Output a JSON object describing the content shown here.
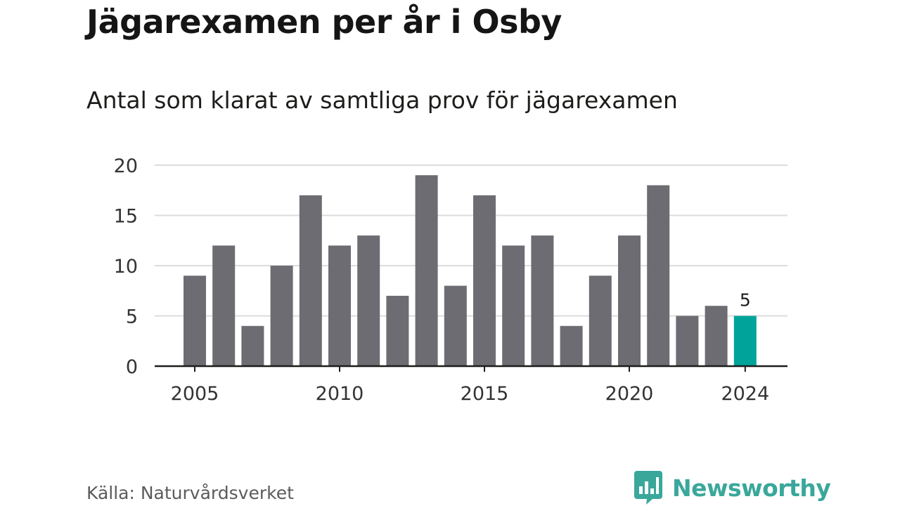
{
  "title": "Jägarexamen per år i Osby",
  "subtitle": "Antal som klarat av samtliga prov för jägarexamen",
  "source": "Källa: Naturvårdsverket",
  "brand": {
    "name": "Newsworthy",
    "icon": "newsworthy-logo-icon",
    "color": "#3aa79b"
  },
  "colors": {
    "bar": "#6d6c72",
    "highlight": "#00a39a",
    "grid": "#dcdcdc",
    "axis": "#1d1d1b"
  },
  "chart_data": {
    "type": "bar",
    "categories": [
      "2005",
      "2006",
      "2007",
      "2008",
      "2009",
      "2010",
      "2011",
      "2012",
      "2013",
      "2014",
      "2015",
      "2016",
      "2017",
      "2018",
      "2019",
      "2020",
      "2021",
      "2022",
      "2023",
      "2024"
    ],
    "values": [
      9,
      12,
      4,
      10,
      17,
      12,
      13,
      7,
      19,
      8,
      17,
      12,
      13,
      4,
      9,
      13,
      18,
      5,
      6,
      5
    ],
    "highlight_index": 19,
    "highlight_label": "5",
    "ylim": [
      0,
      20
    ],
    "yticks": [
      0,
      5,
      10,
      15,
      20
    ],
    "xtick_labels": [
      "2005",
      "2010",
      "2015",
      "2020",
      "2024"
    ],
    "grid": true,
    "xlabel": "",
    "ylabel": ""
  }
}
